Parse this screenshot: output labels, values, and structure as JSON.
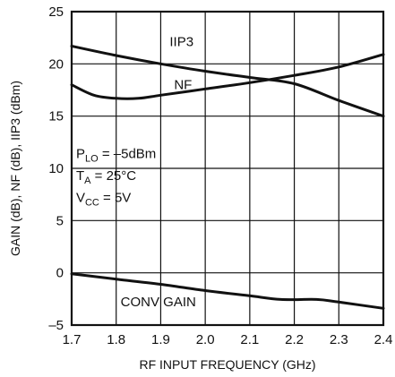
{
  "chart_data": {
    "type": "line",
    "xlabel": "RF INPUT FREQUENCY (GHz)",
    "ylabel": "GAIN (dB), NF (dB), IIP3 (dBm)",
    "xlim": [
      1.7,
      2.4
    ],
    "ylim": [
      -5,
      25
    ],
    "x_ticks": [
      "1.7",
      "1.8",
      "1.9",
      "2.0",
      "2.1",
      "2.2",
      "2.3",
      "2.4"
    ],
    "y_ticks": [
      "–5",
      "0",
      "5",
      "10",
      "15",
      "20",
      "25"
    ],
    "grid": true,
    "series": [
      {
        "name": "IIP3",
        "x": [
          1.7,
          1.8,
          1.9,
          2.0,
          2.1,
          2.2,
          2.3,
          2.4
        ],
        "values": [
          21.7,
          20.8,
          20.0,
          19.3,
          18.7,
          18.1,
          16.5,
          15.0
        ]
      },
      {
        "name": "NF",
        "x": [
          1.7,
          1.75,
          1.8,
          1.85,
          1.9,
          2.0,
          2.1,
          2.2,
          2.3,
          2.4
        ],
        "values": [
          18.0,
          17.0,
          16.7,
          16.7,
          17.0,
          17.6,
          18.2,
          18.9,
          19.7,
          20.9
        ]
      },
      {
        "name": "CONV GAIN",
        "x": [
          1.7,
          1.8,
          1.9,
          2.0,
          2.1,
          2.17,
          2.25,
          2.3,
          2.4
        ],
        "values": [
          -0.1,
          -0.6,
          -1.1,
          -1.7,
          -2.2,
          -2.55,
          -2.55,
          -2.8,
          -3.4
        ]
      }
    ],
    "series_labels": [
      {
        "text": "IIP3",
        "x": 1.92,
        "y": 21.7
      },
      {
        "text": "NF",
        "x": 1.93,
        "y": 17.6
      },
      {
        "text": "CONV GAIN",
        "x": 1.81,
        "y": -3.2
      }
    ],
    "annotations": [
      {
        "main": "P",
        "sub": "LO",
        "rest": " = –5dBm",
        "x": 1.71,
        "y": 11.0
      },
      {
        "main": "T",
        "sub": "A",
        "rest": " = 25°C",
        "x": 1.71,
        "y": 8.9
      },
      {
        "main": "V",
        "sub": "CC",
        "rest": " = 5V",
        "x": 1.71,
        "y": 6.8
      }
    ]
  }
}
